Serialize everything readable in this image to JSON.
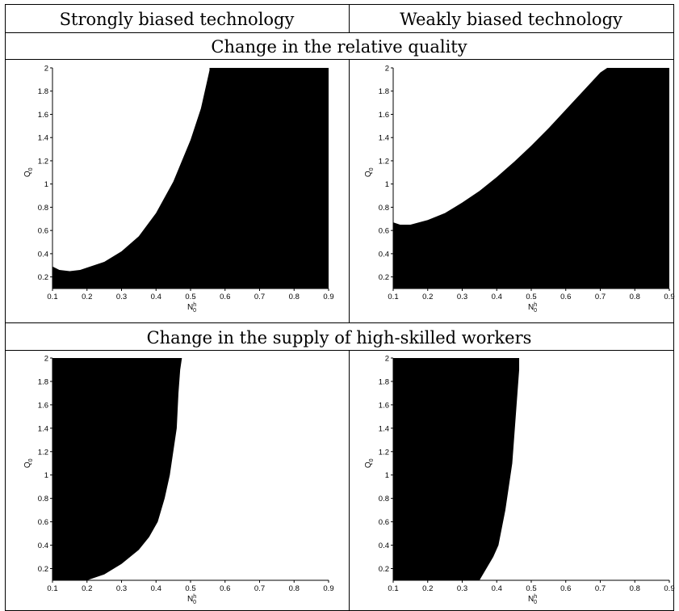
{
  "table": {
    "column_headers": [
      "Strongly biased technology",
      "Weakly biased technology"
    ],
    "row_headers": [
      "Change in the relative quality",
      "Change in the supply of high-skilled workers"
    ]
  },
  "chart_data": [
    {
      "type": "region",
      "panel": "strong-quality",
      "xlabel": "N",
      "xlabel_sub": "0",
      "xlabel_sup": "h",
      "ylabel": "Q",
      "ylabel_sub": "0",
      "xlim": [
        0.1,
        0.9
      ],
      "ylim": [
        0.1,
        2.0
      ],
      "xticks": [
        0.1,
        0.2,
        0.3,
        0.4,
        0.5,
        0.6,
        0.7,
        0.8,
        0.9
      ],
      "yticks": [
        0.2,
        0.4,
        0.6,
        0.8,
        1,
        1.2,
        1.4,
        1.6,
        1.8,
        2
      ],
      "fill": "above",
      "boundary": [
        [
          0.1,
          0.29
        ],
        [
          0.12,
          0.26
        ],
        [
          0.15,
          0.25
        ],
        [
          0.18,
          0.26
        ],
        [
          0.2,
          0.28
        ],
        [
          0.25,
          0.33
        ],
        [
          0.3,
          0.42
        ],
        [
          0.35,
          0.55
        ],
        [
          0.4,
          0.75
        ],
        [
          0.45,
          1.02
        ],
        [
          0.5,
          1.38
        ],
        [
          0.53,
          1.65
        ],
        [
          0.555,
          1.98
        ],
        [
          0.555,
          2.0
        ]
      ]
    },
    {
      "type": "region",
      "panel": "weak-quality",
      "xlabel": "N",
      "xlabel_sub": "0",
      "xlabel_sup": "h",
      "ylabel": "Q",
      "ylabel_sub": "0",
      "xlim": [
        0.1,
        0.9
      ],
      "ylim": [
        0.1,
        2.0
      ],
      "xticks": [
        0.1,
        0.2,
        0.3,
        0.4,
        0.5,
        0.6,
        0.7,
        0.8,
        0.9
      ],
      "yticks": [
        0.2,
        0.4,
        0.6,
        0.8,
        1,
        1.2,
        1.4,
        1.6,
        1.8,
        2
      ],
      "fill": "above",
      "boundary": [
        [
          0.1,
          0.67
        ],
        [
          0.12,
          0.65
        ],
        [
          0.15,
          0.65
        ],
        [
          0.2,
          0.69
        ],
        [
          0.25,
          0.75
        ],
        [
          0.3,
          0.84
        ],
        [
          0.35,
          0.94
        ],
        [
          0.4,
          1.06
        ],
        [
          0.45,
          1.19
        ],
        [
          0.5,
          1.33
        ],
        [
          0.55,
          1.48
        ],
        [
          0.6,
          1.64
        ],
        [
          0.65,
          1.8
        ],
        [
          0.7,
          1.96
        ],
        [
          0.72,
          2.0
        ]
      ]
    },
    {
      "type": "region",
      "panel": "strong-supply",
      "xlabel": "N",
      "xlabel_sub": "0",
      "xlabel_sup": "h",
      "ylabel": "Q",
      "ylabel_sub": "0",
      "xlim": [
        0.1,
        0.9
      ],
      "ylim": [
        0.1,
        2.0
      ],
      "xticks": [
        0.1,
        0.2,
        0.3,
        0.4,
        0.5,
        0.6,
        0.7,
        0.8,
        0.9
      ],
      "yticks": [
        0.2,
        0.4,
        0.6,
        0.8,
        1,
        1.2,
        1.4,
        1.6,
        1.8,
        2
      ],
      "fill": "left",
      "boundary": [
        [
          0.2,
          0.1
        ],
        [
          0.25,
          0.15
        ],
        [
          0.3,
          0.24
        ],
        [
          0.35,
          0.36
        ],
        [
          0.38,
          0.47
        ],
        [
          0.405,
          0.6
        ],
        [
          0.425,
          0.8
        ],
        [
          0.44,
          1.0
        ],
        [
          0.45,
          1.2
        ],
        [
          0.46,
          1.4
        ],
        [
          0.465,
          1.7
        ],
        [
          0.47,
          1.9
        ],
        [
          0.475,
          2.0
        ]
      ]
    },
    {
      "type": "region",
      "panel": "weak-supply",
      "xlabel": "N",
      "xlabel_sub": "0",
      "xlabel_sup": "h",
      "ylabel": "Q",
      "ylabel_sub": "0",
      "xlim": [
        0.1,
        0.9
      ],
      "ylim": [
        0.1,
        2.0
      ],
      "xticks": [
        0.1,
        0.2,
        0.3,
        0.4,
        0.5,
        0.6,
        0.7,
        0.8,
        0.9
      ],
      "yticks": [
        0.2,
        0.4,
        0.6,
        0.8,
        1,
        1.2,
        1.4,
        1.6,
        1.8,
        2
      ],
      "fill": "left",
      "boundary": [
        [
          0.35,
          0.1
        ],
        [
          0.37,
          0.2
        ],
        [
          0.39,
          0.3
        ],
        [
          0.405,
          0.4
        ],
        [
          0.415,
          0.55
        ],
        [
          0.425,
          0.7
        ],
        [
          0.435,
          0.9
        ],
        [
          0.445,
          1.1
        ],
        [
          0.45,
          1.3
        ],
        [
          0.455,
          1.5
        ],
        [
          0.46,
          1.7
        ],
        [
          0.465,
          1.9
        ],
        [
          0.465,
          2.0
        ]
      ]
    }
  ]
}
